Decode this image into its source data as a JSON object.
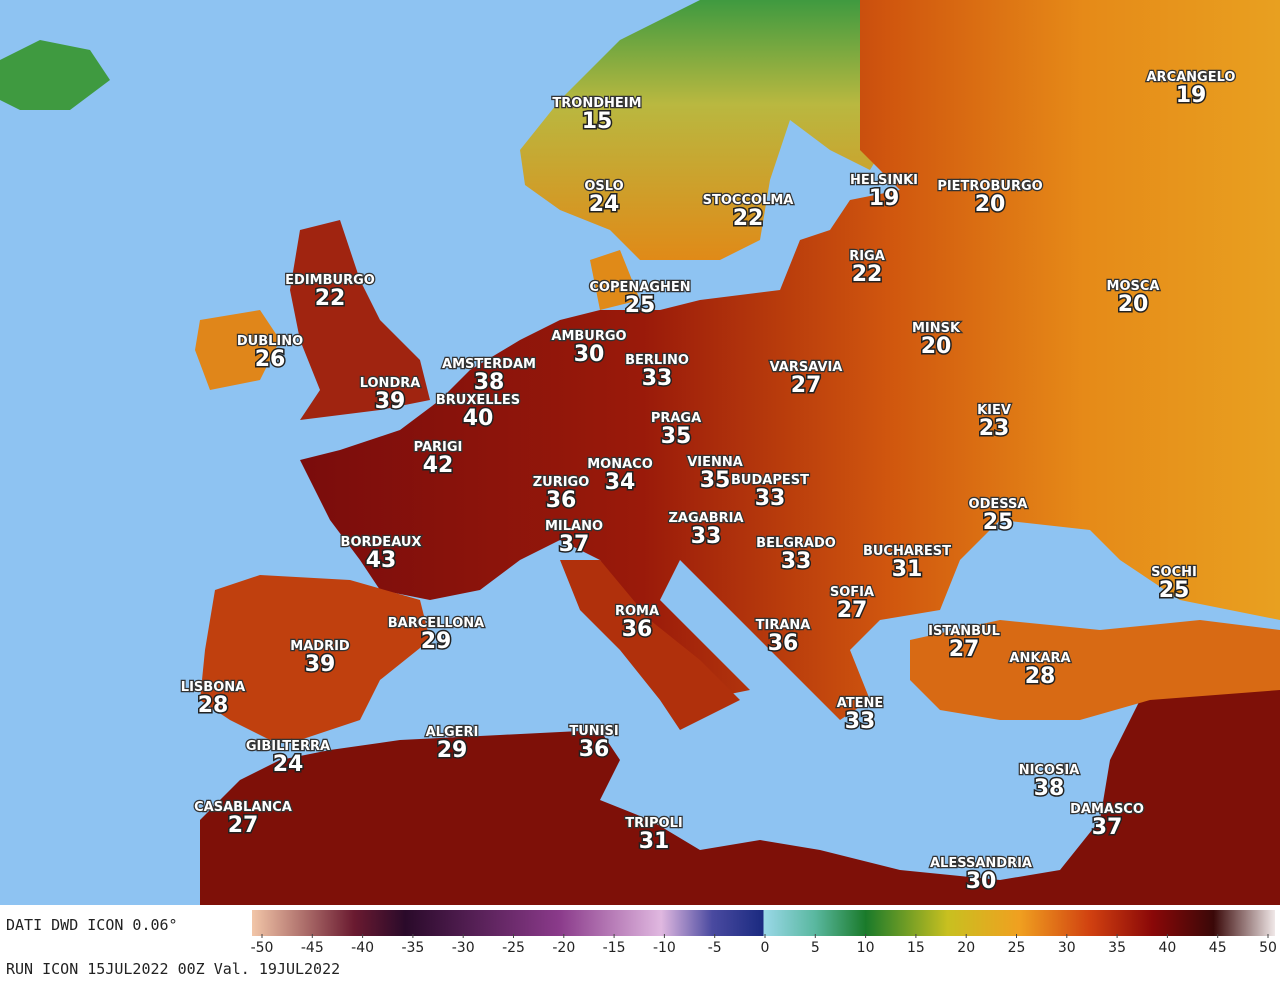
{
  "cities": [
    {
      "name": "TRONDHEIM",
      "temp": 15
    },
    {
      "name": "OSLO",
      "temp": 24
    },
    {
      "name": "STOCCOLMA",
      "temp": 22
    },
    {
      "name": "HELSINKI",
      "temp": 19
    },
    {
      "name": "PIETROBURGO",
      "temp": 20
    },
    {
      "name": "ARCANGELO",
      "temp": 19
    },
    {
      "name": "RIGA",
      "temp": 22
    },
    {
      "name": "MOSCA",
      "temp": 20
    },
    {
      "name": "EDIMBURGO",
      "temp": 22
    },
    {
      "name": "COPENAGHEN",
      "temp": 25
    },
    {
      "name": "DUBLINO",
      "temp": 26
    },
    {
      "name": "AMBURGO",
      "temp": 30
    },
    {
      "name": "MINSK",
      "temp": 20
    },
    {
      "name": "AMSTERDAM",
      "temp": 38
    },
    {
      "name": "BERLINO",
      "temp": 33
    },
    {
      "name": "VARSAVIA",
      "temp": 27
    },
    {
      "name": "LONDRA",
      "temp": 39
    },
    {
      "name": "BRUXELLES",
      "temp": 40
    },
    {
      "name": "KIEV",
      "temp": 23
    },
    {
      "name": "PRAGA",
      "temp": 35
    },
    {
      "name": "PARIGI",
      "temp": 42
    },
    {
      "name": "MONACO",
      "temp": 34
    },
    {
      "name": "VIENNA",
      "temp": 35
    },
    {
      "name": "BUDAPEST",
      "temp": 33
    },
    {
      "name": "ZURIGO",
      "temp": 36
    },
    {
      "name": "ODESSA",
      "temp": 25
    },
    {
      "name": "ZAGABRIA",
      "temp": 33
    },
    {
      "name": "MILANO",
      "temp": 37
    },
    {
      "name": "BORDEAUX",
      "temp": 43
    },
    {
      "name": "BELGRADO",
      "temp": 33
    },
    {
      "name": "BUCHAREST",
      "temp": 31
    },
    {
      "name": "SOCHI",
      "temp": 25
    },
    {
      "name": "SOFIA",
      "temp": 27
    },
    {
      "name": "ROMA",
      "temp": 36
    },
    {
      "name": "BARCELLONA",
      "temp": 29
    },
    {
      "name": "TIRANA",
      "temp": 36
    },
    {
      "name": "ISTANBUL",
      "temp": 27
    },
    {
      "name": "MADRID",
      "temp": 39
    },
    {
      "name": "ANKARA",
      "temp": 28
    },
    {
      "name": "LISBONA",
      "temp": 28
    },
    {
      "name": "ATENE",
      "temp": 33
    },
    {
      "name": "ALGERI",
      "temp": 29
    },
    {
      "name": "TUNISI",
      "temp": 36
    },
    {
      "name": "GIBILTERRA",
      "temp": 24
    },
    {
      "name": "NICOSIA",
      "temp": 38
    },
    {
      "name": "CASABLANCA",
      "temp": 27
    },
    {
      "name": "DAMASCO",
      "temp": 37
    },
    {
      "name": "TRIPOLI",
      "temp": 31
    },
    {
      "name": "ALESSANDRIA",
      "temp": 30
    }
  ],
  "footer": {
    "source": "DATI DWD ICON 0.06°",
    "run": "RUN ICON 15JUL2022 00Z Val. 19JUL2022"
  },
  "legend": {
    "ticks": [
      -50,
      -45,
      -40,
      -35,
      -30,
      -25,
      -20,
      -15,
      -10,
      -5,
      0,
      5,
      10,
      15,
      20,
      25,
      30,
      35,
      40,
      45,
      50
    ]
  }
}
